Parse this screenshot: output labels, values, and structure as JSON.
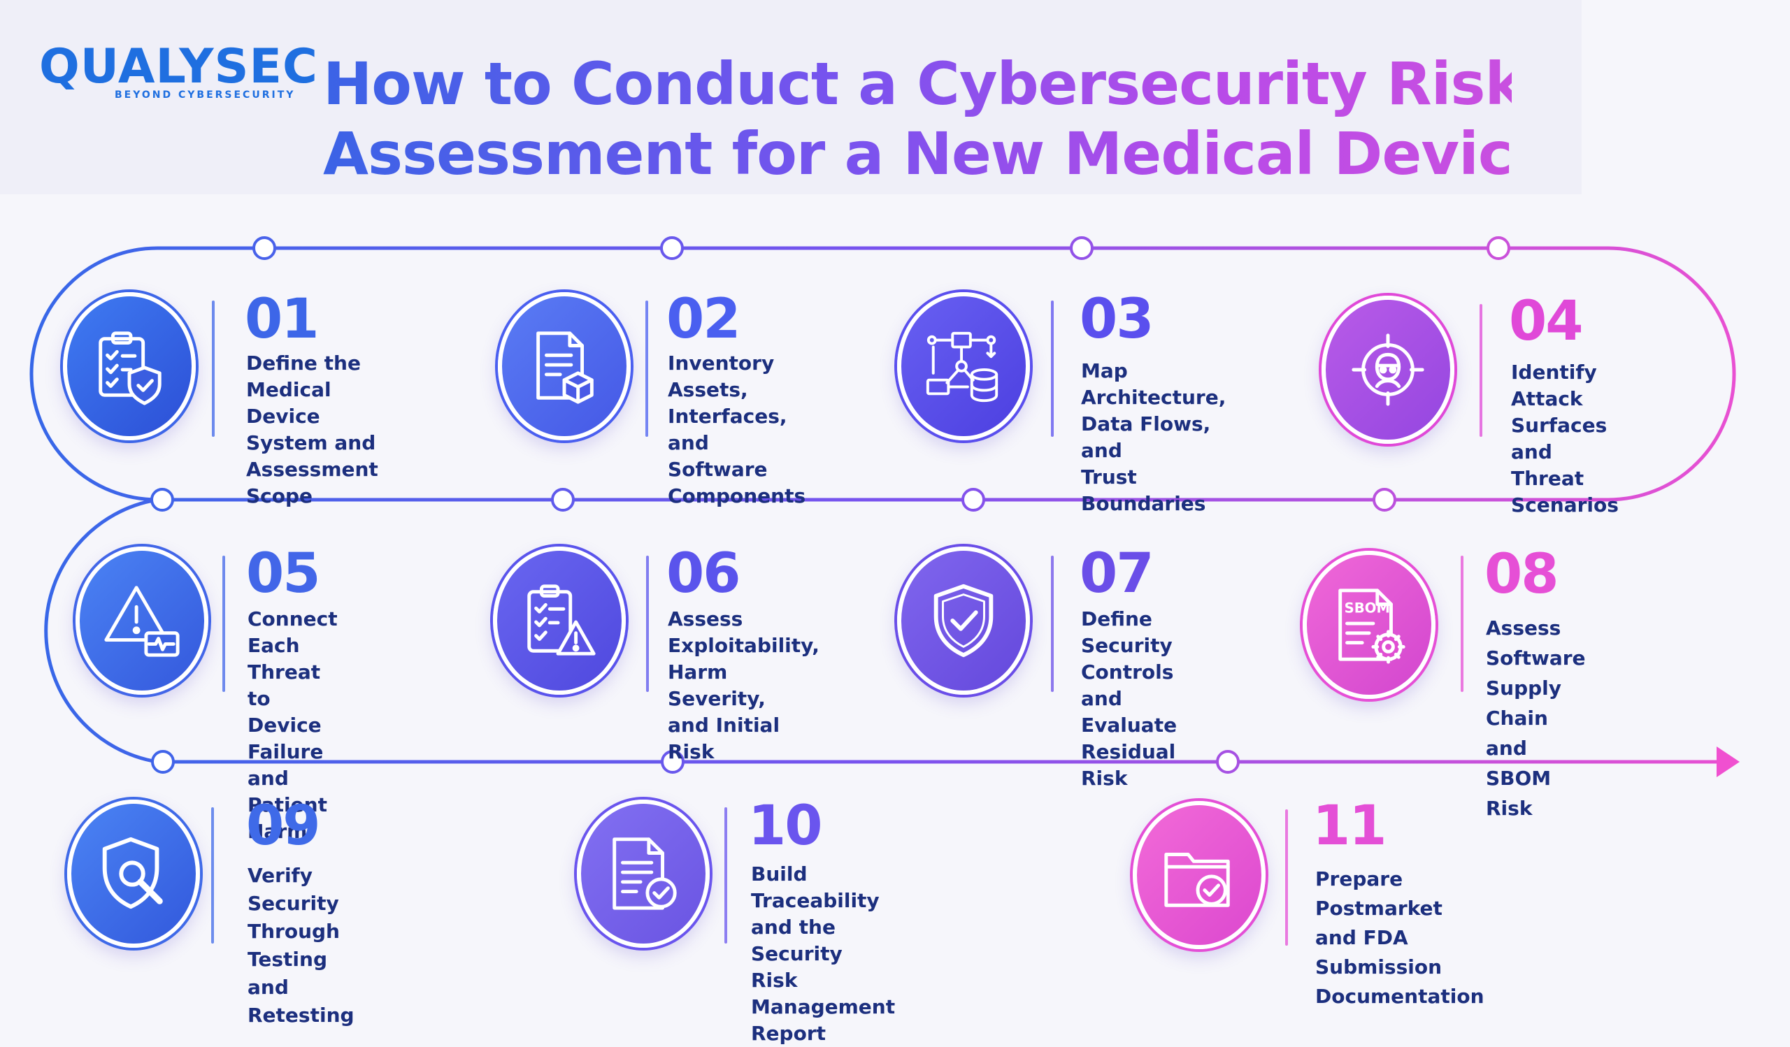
{
  "logo": {
    "wordmark": "QUALYSEC",
    "tagline": "BEYOND CYBERSECURITY"
  },
  "title": {
    "line1": "How to Conduct a Cybersecurity Risk",
    "line2": "Assessment for a New Medical Device"
  },
  "colors": {
    "blue": "#3468e8",
    "violet": "#7a52ee",
    "magenta": "#e64fd6"
  },
  "steps": [
    {
      "number": "01",
      "label": "Define the\nMedical Device\nSystem and\nAssessment Scope",
      "icon": "checklist-shield-icon"
    },
    {
      "number": "02",
      "label": "Inventory Assets,\nInterfaces, and\nSoftware\nComponents",
      "icon": "document-cube-icon"
    },
    {
      "number": "03",
      "label": "Map Architecture,\nData Flows, and\nTrust Boundaries",
      "icon": "data-flow-diagram-icon"
    },
    {
      "number": "04",
      "label": "Identify Attack\nSurfaces and\nThreat Scenarios",
      "icon": "target-hacker-icon"
    },
    {
      "number": "05",
      "label": "Connect Each\nThreat to Device\nFailure and\nPatient Harm",
      "icon": "warning-monitor-icon"
    },
    {
      "number": "06",
      "label": "Assess\nExploitability,\nHarm Severity,\nand Initial Risk",
      "icon": "checklist-warning-icon"
    },
    {
      "number": "07",
      "label": "Define Security\nControls and\nEvaluate\nResidual Risk",
      "icon": "shield-check-icon"
    },
    {
      "number": "08",
      "label": "Assess Software\nSupply Chain and\nSBOM Risk",
      "icon": "sbom-document-gear-icon",
      "icon_text": "SBOM"
    },
    {
      "number": "09",
      "label": "Verify Security\nThrough Testing\nand Retesting",
      "icon": "shield-magnifier-icon"
    },
    {
      "number": "10",
      "label": "Build Traceability\nand the Security\nRisk Management\nReport",
      "icon": "document-check-icon"
    },
    {
      "number": "11",
      "label": "Prepare Postmarket\nand FDA Submission\nDocumentation",
      "icon": "folder-check-icon"
    }
  ]
}
